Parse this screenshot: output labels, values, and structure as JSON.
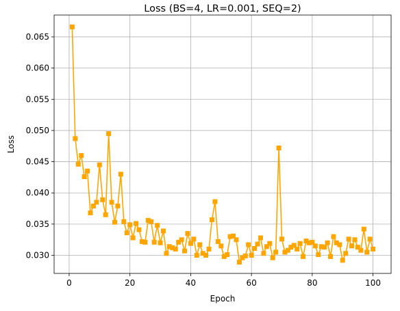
{
  "chart_data": {
    "type": "line",
    "title": "Loss (BS=4, LR=0.001, SEQ=2)",
    "xlabel": "Epoch",
    "ylabel": "Loss",
    "xlim": [
      -4.95,
      105.95
    ],
    "ylim": [
      0.0271,
      0.0685
    ],
    "xticks": [
      0,
      20,
      40,
      60,
      80,
      100
    ],
    "yticks": [
      0.03,
      0.035,
      0.04,
      0.045,
      0.05,
      0.055,
      0.06,
      0.065
    ],
    "xtick_labels": [
      "0",
      "20",
      "40",
      "60",
      "80",
      "100"
    ],
    "ytick_labels": [
      "0.030",
      "0.035",
      "0.040",
      "0.045",
      "0.050",
      "0.055",
      "0.060",
      "0.065"
    ],
    "grid": true,
    "marker": "square",
    "color": "#ffa500",
    "series": [
      {
        "x": [
          1,
          2,
          3,
          4,
          5,
          6,
          7,
          8,
          9,
          10,
          11,
          12,
          13,
          14,
          15,
          16,
          17,
          18,
          19,
          20,
          21,
          22,
          23,
          24,
          25,
          26,
          27,
          28,
          29,
          30,
          31,
          32,
          33,
          34,
          35,
          36,
          37,
          38,
          39,
          40,
          41,
          42,
          43,
          44,
          45,
          46,
          47,
          48,
          49,
          50,
          51,
          52,
          53,
          54,
          55,
          56,
          57,
          58,
          59,
          60,
          61,
          62,
          63,
          64,
          65,
          66,
          67,
          68,
          69,
          70,
          71,
          72,
          73,
          74,
          75,
          76,
          77,
          78,
          79,
          80,
          81,
          82,
          83,
          84,
          85,
          86,
          87,
          88,
          89,
          90,
          91,
          92,
          93,
          94,
          95,
          96,
          97,
          98,
          99,
          100
        ],
        "values": [
          0.0666,
          0.0487,
          0.0446,
          0.046,
          0.0426,
          0.0435,
          0.0368,
          0.0379,
          0.0385,
          0.0445,
          0.0389,
          0.0365,
          0.0495,
          0.0385,
          0.0353,
          0.0379,
          0.043,
          0.0354,
          0.0336,
          0.0349,
          0.0328,
          0.0351,
          0.0341,
          0.0322,
          0.0321,
          0.0356,
          0.0354,
          0.0321,
          0.0348,
          0.032,
          0.0339,
          0.0303,
          0.0314,
          0.0312,
          0.031,
          0.0321,
          0.0325,
          0.0307,
          0.0335,
          0.0319,
          0.0326,
          0.03,
          0.0317,
          0.0303,
          0.03,
          0.031,
          0.0357,
          0.0386,
          0.0322,
          0.0315,
          0.0298,
          0.0301,
          0.033,
          0.0331,
          0.0325,
          0.0289,
          0.0296,
          0.0299,
          0.0317,
          0.03,
          0.0311,
          0.0318,
          0.0328,
          0.0303,
          0.0314,
          0.0319,
          0.0296,
          0.0305,
          0.0472,
          0.0326,
          0.0305,
          0.0308,
          0.0313,
          0.0316,
          0.031,
          0.0319,
          0.0298,
          0.0323,
          0.032,
          0.0321,
          0.0315,
          0.0301,
          0.0314,
          0.0313,
          0.032,
          0.0298,
          0.033,
          0.032,
          0.0317,
          0.0292,
          0.0303,
          0.0326,
          0.0315,
          0.0325,
          0.0313,
          0.0308,
          0.0342,
          0.0305,
          0.0326,
          0.031
        ]
      }
    ]
  }
}
